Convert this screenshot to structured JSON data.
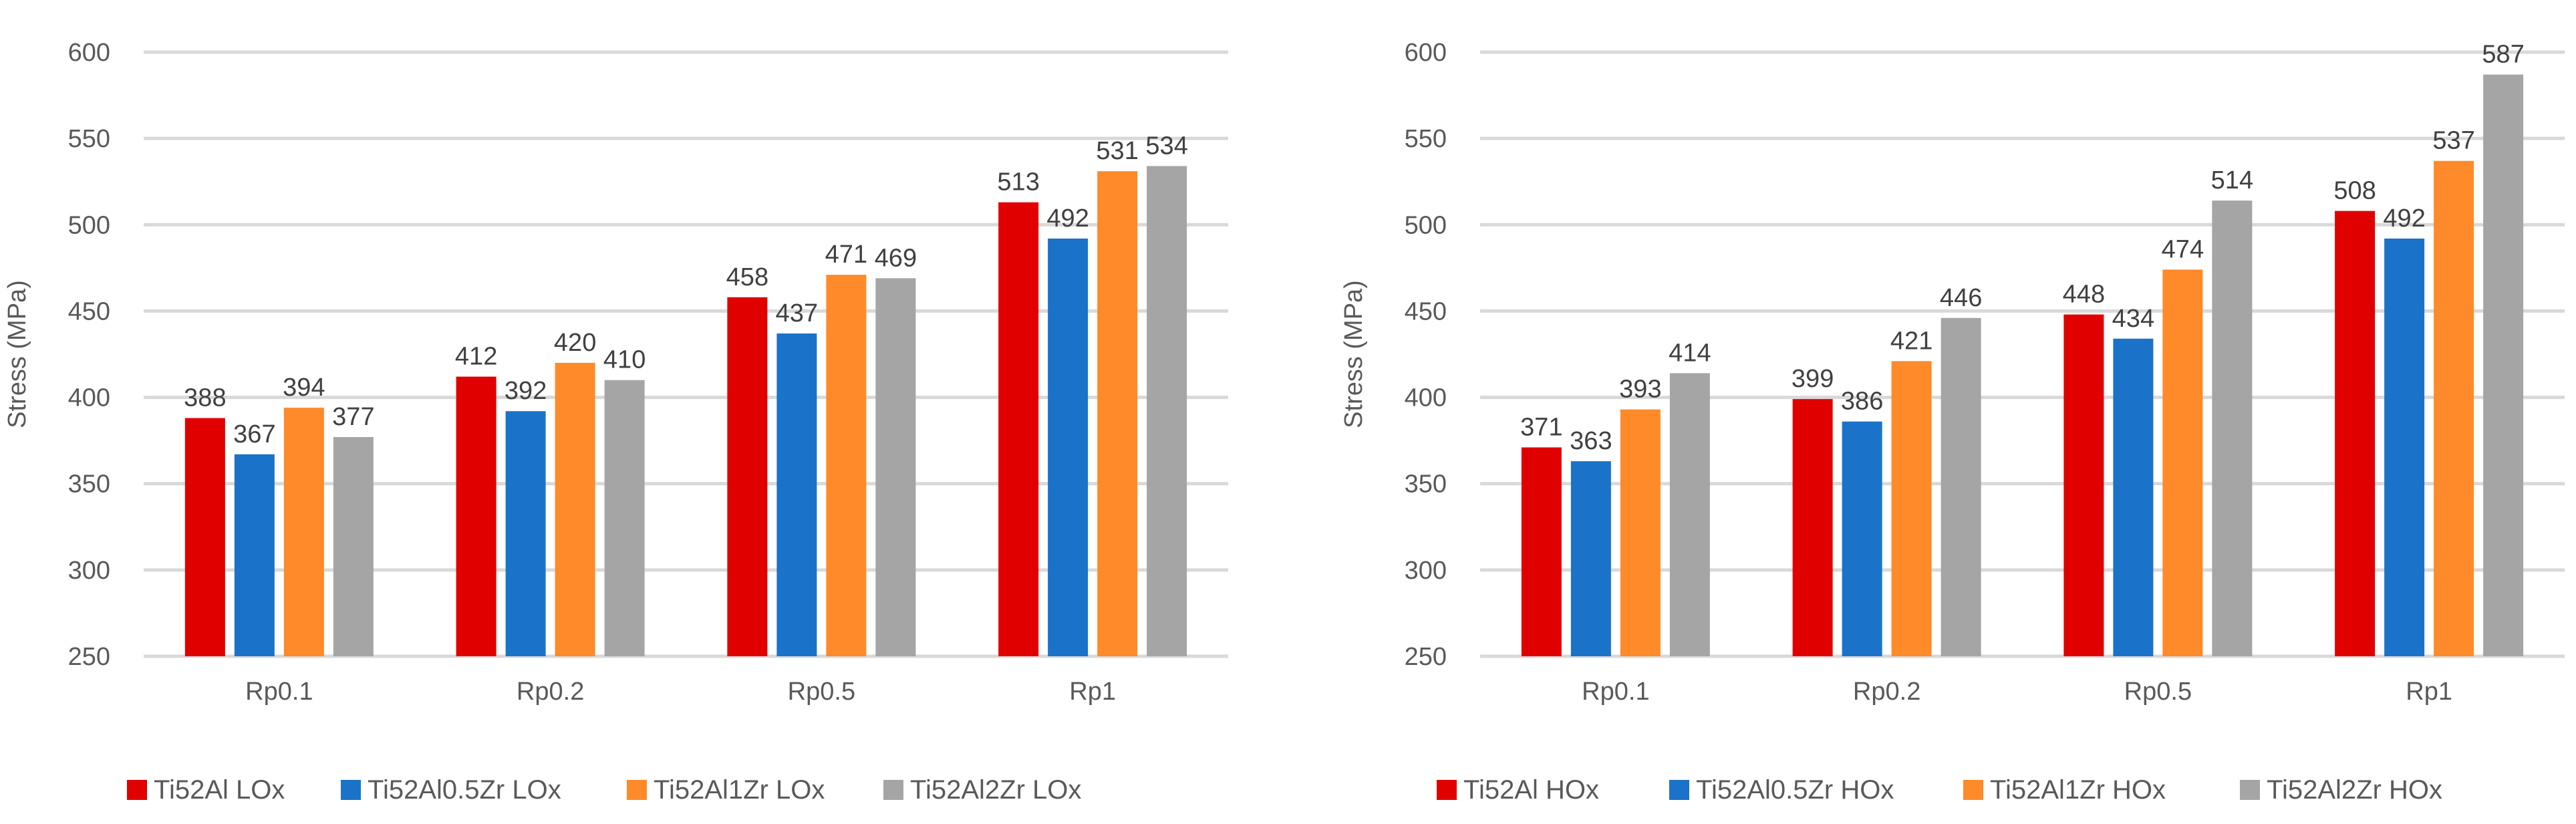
{
  "chart_data": [
    {
      "type": "bar",
      "title": "",
      "xlabel": "",
      "ylabel": "Stress (MPa)",
      "ylim": [
        250,
        600
      ],
      "yticks": [
        250,
        300,
        350,
        400,
        450,
        500,
        550,
        600
      ],
      "grid": true,
      "legend_position": "bottom",
      "categories": [
        "Rp0.1",
        "Rp0.2",
        "Rp0.5",
        "Rp1"
      ],
      "series": [
        {
          "name": "Ti52Al LOx",
          "color": "#e00000",
          "values": [
            388,
            412,
            458,
            513
          ]
        },
        {
          "name": "Ti52Al0.5Zr LOx",
          "color": "#1a73c9",
          "values": [
            367,
            392,
            437,
            492
          ]
        },
        {
          "name": "Ti52Al1Zr LOx",
          "color": "#ff8a2a",
          "values": [
            394,
            420,
            471,
            531
          ]
        },
        {
          "name": "Ti52Al2Zr LOx",
          "color": "#a5a5a5",
          "values": [
            377,
            410,
            469,
            534
          ]
        }
      ]
    },
    {
      "type": "bar",
      "title": "",
      "xlabel": "",
      "ylabel": "Stress (MPa)",
      "ylim": [
        250,
        600
      ],
      "yticks": [
        250,
        300,
        350,
        400,
        450,
        500,
        550,
        600
      ],
      "grid": true,
      "legend_position": "bottom",
      "categories": [
        "Rp0.1",
        "Rp0.2",
        "Rp0.5",
        "Rp1"
      ],
      "series": [
        {
          "name": "Ti52Al HOx",
          "color": "#e00000",
          "values": [
            371,
            399,
            448,
            508
          ]
        },
        {
          "name": "Ti52Al0.5Zr HOx",
          "color": "#1a73c9",
          "values": [
            363,
            386,
            434,
            492
          ]
        },
        {
          "name": "Ti52Al1Zr HOx",
          "color": "#ff8a2a",
          "values": [
            393,
            421,
            474,
            537
          ]
        },
        {
          "name": "Ti52Al2Zr HOx",
          "color": "#a5a5a5",
          "values": [
            414,
            446,
            514,
            587
          ]
        }
      ]
    }
  ]
}
